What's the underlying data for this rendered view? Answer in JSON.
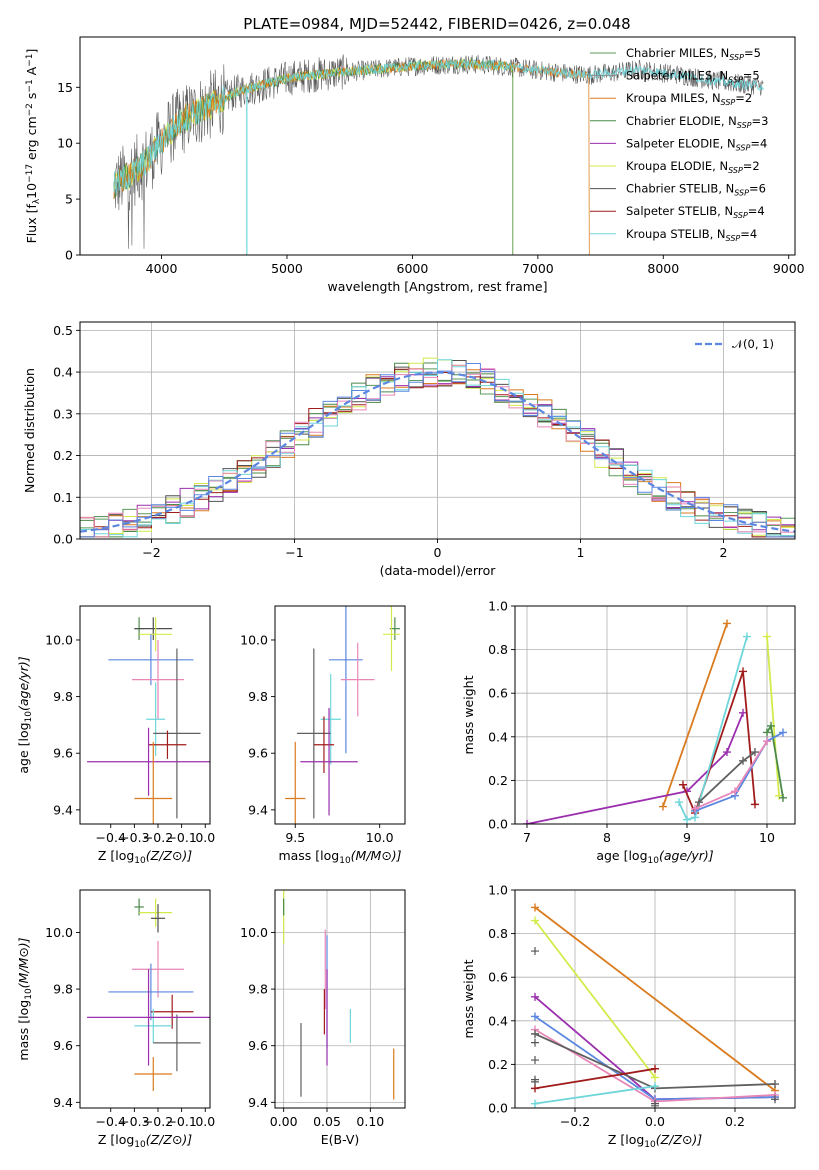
{
  "title": "PLATE=0984, MJD=52442, FIBERID=0426, z=0.048",
  "colors": {
    "Chabrier MILES": "#5a9a5a",
    "Salpeter MILES": "#8a8a8a",
    "Kroupa MILES": "#d97b1e",
    "Chabrier ELODIE": "#4a8a4a",
    "Salpeter ELODIE": "#9b2fae",
    "Kroupa ELODIE": "#d4ea4a",
    "Chabrier STELIB": "#505050",
    "Salpeter STELIB": "#a01c1c",
    "Kroupa STELIB": "#6ed6da",
    "pink": "#e886b8",
    "blue": "#5b87e0",
    "gray2": "#606060"
  },
  "chart_data": [
    {
      "id": "spectrum",
      "type": "line",
      "xlabel": "wavelength [Angstrom, rest frame]",
      "ylabel": "Flux [f_λ 10^-17 erg cm^-2 s^-1 A^-1]",
      "xlim": [
        3350,
        9050
      ],
      "ylim": [
        0,
        19.5
      ],
      "xticks": [
        "4000",
        "5000",
        "6000",
        "7000",
        "8000",
        "9000"
      ],
      "yticks": [
        "0",
        "5",
        "10",
        "15"
      ],
      "legend_position": "top-right",
      "legend": [
        {
          "label": "Chabrier MILES, N",
          "sub": "SSP",
          "suffix": "=5"
        },
        {
          "label": "Salpeter MILES, N",
          "sub": "SSP",
          "suffix": "=5"
        },
        {
          "label": "Kroupa MILES, N",
          "sub": "SSP",
          "suffix": "=2"
        },
        {
          "label": "Chabrier ELODIE, N",
          "sub": "SSP",
          "suffix": "=3"
        },
        {
          "label": "Salpeter ELODIE, N",
          "sub": "SSP",
          "suffix": "=4"
        },
        {
          "label": "Kroupa ELODIE, N",
          "sub": "SSP",
          "suffix": "=2"
        },
        {
          "label": "Chabrier STELIB, N",
          "sub": "SSP",
          "suffix": "=6"
        },
        {
          "label": "Salpeter STELIB, N",
          "sub": "SSP",
          "suffix": "=4"
        },
        {
          "label": "Kroupa STELIB, N",
          "sub": "SSP",
          "suffix": "=4"
        }
      ],
      "continuum": {
        "x": [
          3620,
          3700,
          3800,
          3900,
          4000,
          4100,
          4200,
          4300,
          4400,
          4500,
          4600,
          4800,
          5000,
          5200,
          5400,
          5600,
          5800,
          6000,
          6200,
          6400,
          6600,
          6800,
          7000,
          7200,
          7400,
          7600,
          7800,
          8000,
          8200,
          8400,
          8600,
          8800
        ],
        "y": [
          6.2,
          6.8,
          7.6,
          8.6,
          10.2,
          11.5,
          12.3,
          12.9,
          13.4,
          14.0,
          14.6,
          15.2,
          15.8,
          16.1,
          16.3,
          16.5,
          16.7,
          16.9,
          17.0,
          17.1,
          17.0,
          16.8,
          16.5,
          16.3,
          16.1,
          16.3,
          16.6,
          16.3,
          16.0,
          15.6,
          15.3,
          15.1
        ]
      },
      "model_coverage": {
        "MILES": [
          3620,
          7410
        ],
        "ELODIE": [
          3620,
          6800
        ],
        "STELIB": [
          3620,
          8800
        ]
      },
      "sharp_drops": [
        4680,
        6800,
        7410
      ]
    },
    {
      "id": "residuals",
      "type": "histogram",
      "xlabel": "(data-model)/error",
      "ylabel": "Normed distribution",
      "xlim": [
        -2.5,
        2.5
      ],
      "ylim": [
        0,
        0.52
      ],
      "xticks": [
        "−2",
        "−1",
        "0",
        "1",
        "2"
      ],
      "yticks": [
        "0.0",
        "0.1",
        "0.2",
        "0.3",
        "0.4",
        "0.5"
      ],
      "grid": true,
      "legend_position": "top-right",
      "reference_curve": {
        "name": "𝒩(0, 1)",
        "mean": 0,
        "sigma": 1,
        "style": "dashed"
      },
      "bin_width": 0.1
    },
    {
      "id": "z-age",
      "type": "errorbar",
      "xlabel": "Z [log10(Z/Z⊙)]",
      "ylabel": "age  [log10(age/yr)]",
      "xlim": [
        -0.53,
        0.02
      ],
      "ylim": [
        9.35,
        10.12
      ],
      "xticks": [
        "−0.4",
        "−0.3",
        "−0.2",
        "−0.1",
        "0.0"
      ],
      "yticks": [
        "9.4",
        "9.6",
        "9.8",
        "10.0"
      ],
      "points": [
        {
          "x": -0.28,
          "xerr": 0.02,
          "y": 10.04,
          "yerr": 0.04,
          "series": "Chabrier ELODIE"
        },
        {
          "x": -0.22,
          "xerr": 0.08,
          "y": 10.04,
          "yerr": 0.04,
          "series": "Chabrier STELIB"
        },
        {
          "x": -0.21,
          "xerr": 0.07,
          "y": 10.02,
          "yerr": 0.06,
          "series": "Kroupa ELODIE"
        },
        {
          "x": -0.23,
          "xerr": 0.18,
          "y": 9.93,
          "yerr": 0.09,
          "series": "blue"
        },
        {
          "x": -0.2,
          "xerr": 0.11,
          "y": 9.86,
          "yerr": 0.14,
          "series": "pink"
        },
        {
          "x": -0.21,
          "xerr": 0.04,
          "y": 9.72,
          "yerr": 0.13,
          "series": "Kroupa STELIB"
        },
        {
          "x": -0.12,
          "xerr": 0.1,
          "y": 9.67,
          "yerr": 0.3,
          "series": "gray2"
        },
        {
          "x": -0.16,
          "xerr": 0.08,
          "y": 9.63,
          "yerr": 0.05,
          "series": "Salpeter STELIB"
        },
        {
          "x": -0.24,
          "xerr": 0.26,
          "y": 9.57,
          "yerr": 0.12,
          "series": "Salpeter ELODIE"
        },
        {
          "x": -0.22,
          "xerr": 0.08,
          "y": 9.44,
          "yerr": 0.2,
          "series": "Kroupa MILES"
        }
      ]
    },
    {
      "id": "mass-age",
      "type": "errorbar",
      "xlabel": "mass [log10(M/M⊙)]",
      "ylabel": "",
      "xlim": [
        9.38,
        10.15
      ],
      "ylim": [
        9.35,
        10.12
      ],
      "xticks": [
        "9.5",
        "10.0"
      ],
      "yticks": [
        "9.4",
        "9.6",
        "9.8",
        "10.0"
      ],
      "points": [
        {
          "x": 10.09,
          "xerr": 0.03,
          "y": 10.04,
          "yerr": 0.04,
          "series": "Chabrier ELODIE"
        },
        {
          "x": 10.07,
          "xerr": 0.05,
          "y": 10.02,
          "yerr": 0.13,
          "series": "Kroupa ELODIE"
        },
        {
          "x": 9.8,
          "xerr": 0.1,
          "y": 9.93,
          "yerr": 0.33,
          "series": "blue"
        },
        {
          "x": 9.87,
          "xerr": 0.1,
          "y": 9.86,
          "yerr": 0.13,
          "series": "pink"
        },
        {
          "x": 9.71,
          "xerr": 0.06,
          "y": 9.72,
          "yerr": 0.16,
          "series": "Kroupa STELIB"
        },
        {
          "x": 9.61,
          "xerr": 0.1,
          "y": 9.67,
          "yerr": 0.3,
          "series": "gray2"
        },
        {
          "x": 9.67,
          "xerr": 0.06,
          "y": 9.63,
          "yerr": 0.1,
          "series": "Salpeter STELIB"
        },
        {
          "x": 9.7,
          "xerr": 0.17,
          "y": 9.57,
          "yerr": 0.19,
          "series": "Salpeter ELODIE"
        },
        {
          "x": 9.5,
          "xerr": 0.06,
          "y": 9.44,
          "yerr": 0.2,
          "series": "Kroupa MILES"
        }
      ]
    },
    {
      "id": "age-weight",
      "type": "line",
      "xlabel": "age  [log10(age/yr)]",
      "ylabel": "mass weight",
      "xlim": [
        6.85,
        10.35
      ],
      "ylim": [
        0,
        1.0
      ],
      "xticks": [
        "7",
        "8",
        "9",
        "10"
      ],
      "yticks": [
        "0.0",
        "0.2",
        "0.4",
        "0.6",
        "0.8",
        "1.0"
      ],
      "grid": true,
      "series": [
        {
          "name": "Kroupa MILES",
          "x": [
            8.7,
            9.5
          ],
          "y": [
            0.08,
            0.92
          ]
        },
        {
          "name": "Salpeter ELODIE",
          "x": [
            7.0,
            9.0,
            9.5,
            9.7
          ],
          "y": [
            0.0,
            0.15,
            0.33,
            0.51
          ]
        },
        {
          "name": "Salpeter STELIB",
          "x": [
            8.95,
            9.1,
            9.7,
            9.85
          ],
          "y": [
            0.18,
            0.05,
            0.7,
            0.09
          ]
        },
        {
          "name": "Kroupa STELIB",
          "x": [
            8.9,
            9.0,
            9.1,
            9.75
          ],
          "y": [
            0.1,
            0.02,
            0.03,
            0.86
          ]
        },
        {
          "name": "Kroupa ELODIE",
          "x": [
            10.0,
            10.15
          ],
          "y": [
            0.86,
            0.13
          ]
        },
        {
          "name": "Chabrier ELODIE",
          "x": [
            10.0,
            10.05,
            10.2
          ],
          "y": [
            0.42,
            0.45,
            0.12
          ]
        },
        {
          "name": "blue",
          "x": [
            9.1,
            9.6,
            10.0,
            10.2
          ],
          "y": [
            0.06,
            0.13,
            0.38,
            0.42
          ]
        },
        {
          "name": "pink",
          "x": [
            9.1,
            9.6,
            10.0
          ],
          "y": [
            0.07,
            0.15,
            0.38
          ]
        },
        {
          "name": "gray2",
          "x": [
            9.15,
            9.7,
            9.85
          ],
          "y": [
            0.1,
            0.29,
            0.33
          ]
        }
      ]
    },
    {
      "id": "z-mass",
      "type": "errorbar",
      "xlabel": "Z [log10(Z/Z⊙)]",
      "ylabel": "mass [log10(M/M⊙)]",
      "xlim": [
        -0.53,
        0.02
      ],
      "ylim": [
        9.38,
        10.15
      ],
      "xticks": [
        "−0.4",
        "−0.3",
        "−0.2",
        "−0.1",
        "0.0"
      ],
      "yticks": [
        "9.4",
        "9.6",
        "9.8",
        "10.0"
      ],
      "points": [
        {
          "x": -0.28,
          "xerr": 0.02,
          "y": 10.09,
          "yerr": 0.03,
          "series": "Chabrier ELODIE"
        },
        {
          "x": -0.21,
          "xerr": 0.07,
          "y": 10.07,
          "yerr": 0.05,
          "series": "Kroupa ELODIE"
        },
        {
          "x": -0.2,
          "xerr": 0.03,
          "y": 10.05,
          "yerr": 0.05,
          "series": "Chabrier STELIB"
        },
        {
          "x": -0.2,
          "xerr": 0.11,
          "y": 9.87,
          "yerr": 0.1,
          "series": "pink"
        },
        {
          "x": -0.23,
          "xerr": 0.18,
          "y": 9.79,
          "yerr": 0.1,
          "series": "blue"
        },
        {
          "x": -0.14,
          "xerr": 0.09,
          "y": 9.72,
          "yerr": 0.06,
          "series": "Salpeter STELIB"
        },
        {
          "x": -0.22,
          "xerr": 0.08,
          "y": 9.67,
          "yerr": 0.06,
          "series": "Kroupa STELIB"
        },
        {
          "x": -0.12,
          "xerr": 0.1,
          "y": 9.61,
          "yerr": 0.1,
          "series": "gray2"
        },
        {
          "x": -0.24,
          "xerr": 0.26,
          "y": 9.7,
          "yerr": 0.17,
          "series": "Salpeter ELODIE"
        },
        {
          "x": -0.22,
          "xerr": 0.08,
          "y": 9.5,
          "yerr": 0.06,
          "series": "Kroupa MILES"
        }
      ]
    },
    {
      "id": "ebv-mass",
      "type": "errorbar",
      "xlabel": "E(B-V)",
      "ylabel": "",
      "xlim": [
        -0.01,
        0.14
      ],
      "ylim": [
        9.38,
        10.15
      ],
      "xticks": [
        "0.00",
        "0.05",
        "0.10"
      ],
      "yticks": [
        "9.4",
        "9.6",
        "9.8",
        "10.0"
      ],
      "grid": true,
      "points": [
        {
          "x": 0.0,
          "xerr": 0,
          "y": 10.06,
          "yerr": 0.1,
          "series": "Kroupa ELODIE"
        },
        {
          "x": 0.0,
          "xerr": 0,
          "y": 10.09,
          "yerr": 0.03,
          "series": "Chabrier ELODIE"
        },
        {
          "x": 0.048,
          "xerr": 0,
          "y": 9.87,
          "yerr": 0.14,
          "series": "pink"
        },
        {
          "x": 0.05,
          "xerr": 0,
          "y": 9.79,
          "yerr": 0.2,
          "series": "blue"
        },
        {
          "x": 0.047,
          "xerr": 0,
          "y": 9.72,
          "yerr": 0.08,
          "series": "Salpeter STELIB"
        },
        {
          "x": 0.05,
          "xerr": 0,
          "y": 9.7,
          "yerr": 0.17,
          "series": "Salpeter ELODIE"
        },
        {
          "x": 0.077,
          "xerr": 0,
          "y": 9.67,
          "yerr": 0.06,
          "series": "Kroupa STELIB"
        },
        {
          "x": 0.02,
          "xerr": 0,
          "y": 9.55,
          "yerr": 0.13,
          "series": "gray2"
        },
        {
          "x": 0.127,
          "xerr": 0,
          "y": 9.5,
          "yerr": 0.09,
          "series": "Kroupa MILES"
        }
      ]
    },
    {
      "id": "z-weight",
      "type": "line",
      "xlabel": "Z [log10(Z/Z⊙)]",
      "ylabel": "mass weight",
      "xlim": [
        -0.35,
        0.35
      ],
      "ylim": [
        0,
        1.0
      ],
      "xticks": [
        "−0.2",
        "0.0",
        "0.2"
      ],
      "yticks": [
        "0.0",
        "0.2",
        "0.4",
        "0.6",
        "0.8",
        "1.0"
      ],
      "grid": true,
      "series": [
        {
          "name": "Kroupa MILES",
          "x": [
            -0.3,
            0.3
          ],
          "y": [
            0.92,
            0.08
          ]
        },
        {
          "name": "Kroupa ELODIE",
          "x": [
            -0.3,
            0.0
          ],
          "y": [
            0.86,
            0.14
          ]
        },
        {
          "name": "Salpeter ELODIE",
          "x": [
            -0.3,
            0.0,
            0.3
          ],
          "y": [
            0.51,
            0.04,
            0.05
          ]
        },
        {
          "name": "blue",
          "x": [
            -0.3,
            0.0,
            0.3
          ],
          "y": [
            0.42,
            0.04,
            0.05
          ]
        },
        {
          "name": "pink",
          "x": [
            -0.3,
            0.0,
            0.3
          ],
          "y": [
            0.36,
            0.03,
            0.06
          ]
        },
        {
          "name": "gray2",
          "x": [
            -0.3,
            0.0,
            0.3
          ],
          "y": [
            0.34,
            0.09,
            0.11
          ]
        },
        {
          "name": "Salpeter STELIB",
          "x": [
            -0.3,
            0.0
          ],
          "y": [
            0.09,
            0.18
          ]
        },
        {
          "name": "Kroupa STELIB",
          "x": [
            -0.3,
            0.0
          ],
          "y": [
            0.02,
            0.1
          ]
        }
      ],
      "extra_markers": [
        {
          "x": -0.3,
          "y": 0.13
        },
        {
          "x": -0.3,
          "y": 0.12
        },
        {
          "x": -0.3,
          "y": 0.22
        },
        {
          "x": -0.3,
          "y": 0.3
        },
        {
          "x": -0.3,
          "y": 0.72
        },
        {
          "x": 0.0,
          "y": 0.01
        },
        {
          "x": 0.0,
          "y": 0.02
        },
        {
          "x": 0.3,
          "y": 0.04
        }
      ]
    }
  ]
}
